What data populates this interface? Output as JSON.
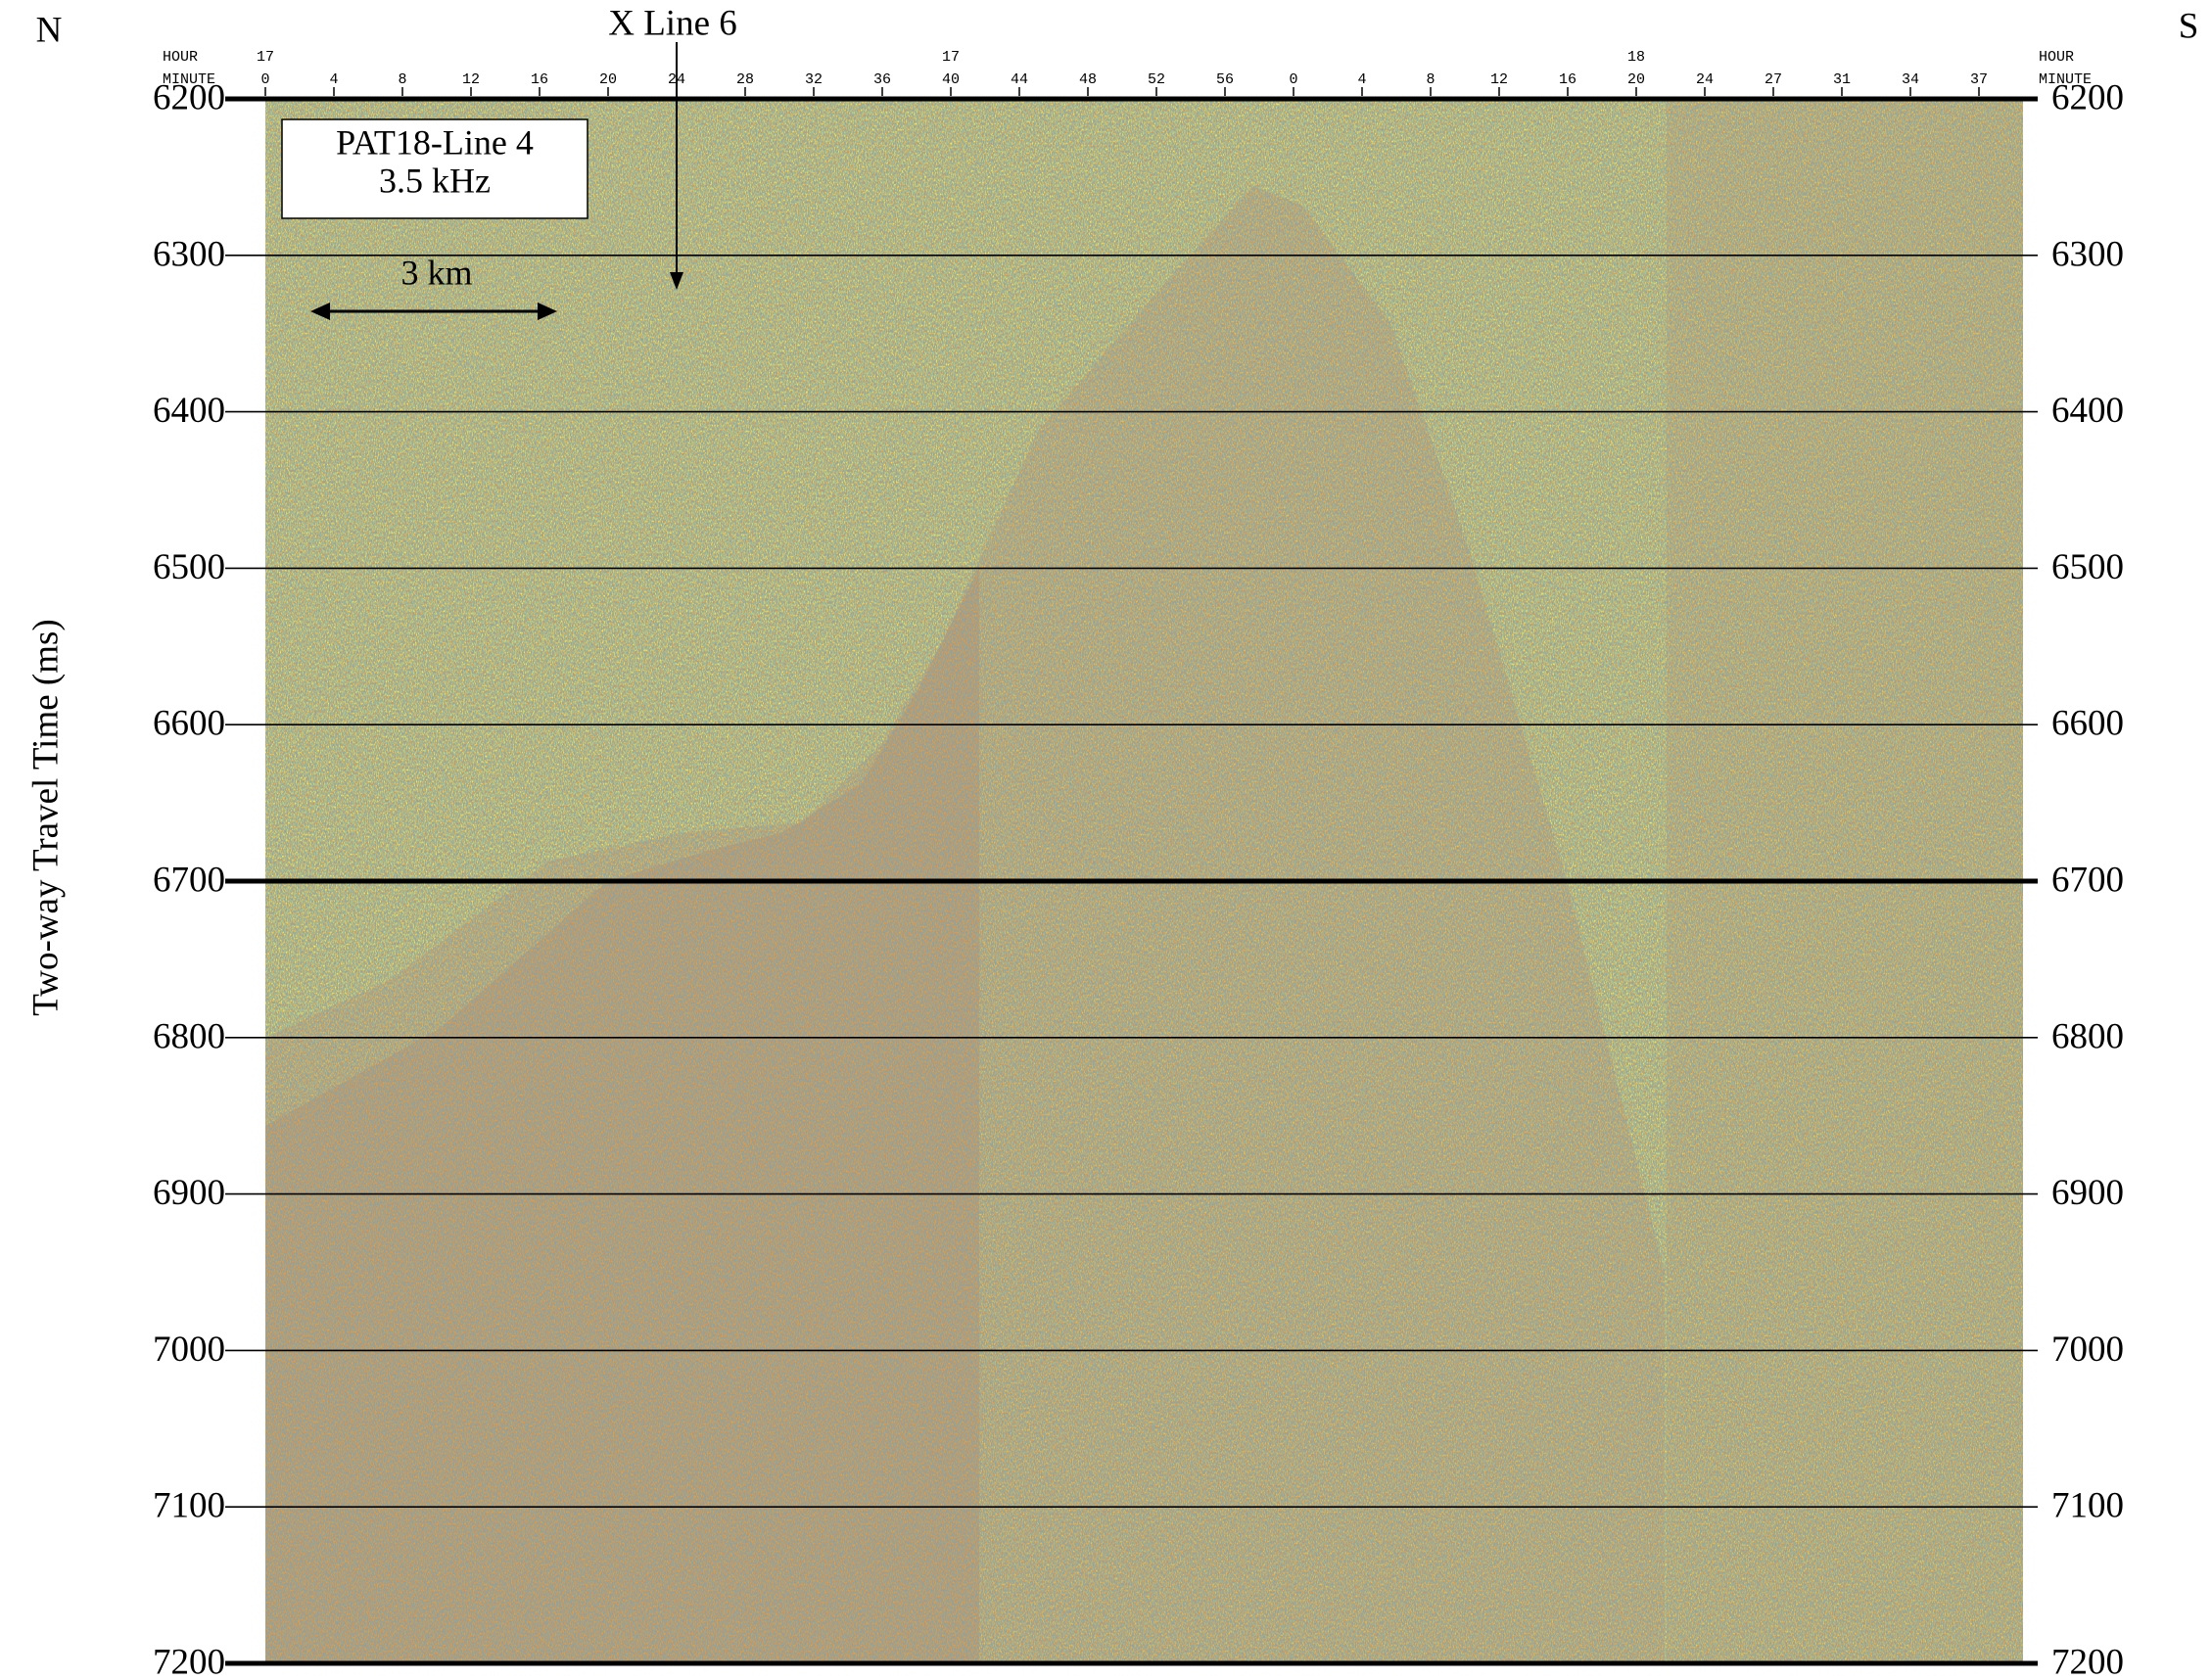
{
  "chart_data": {
    "type": "seismic",
    "title": "X Line 6",
    "ylabel": "Two-way Travel Time (ms)",
    "ylim": [
      6200,
      7200
    ],
    "yticks": [
      6200,
      6300,
      6400,
      6500,
      6600,
      6700,
      6800,
      6900,
      7000,
      7100,
      7200
    ],
    "thick_lines": [
      6200,
      6700,
      7200
    ],
    "left_direction": "N",
    "right_direction": "S",
    "box_lines": [
      "PAT18-Line 4",
      "3.5 kHz"
    ],
    "scale_bar": "3 km",
    "hour_caption": "HOUR",
    "minute_caption": "MINUTE",
    "minutes": [
      "0",
      "4",
      "8",
      "12",
      "16",
      "20",
      "24",
      "28",
      "32",
      "36",
      "40",
      "44",
      "48",
      "52",
      "56",
      "0",
      "4",
      "8",
      "12",
      "16",
      "20",
      "24",
      "27",
      "31",
      "34",
      "37"
    ],
    "hours": [
      "17",
      null,
      null,
      null,
      null,
      null,
      null,
      null,
      null,
      null,
      "17",
      null,
      null,
      null,
      null,
      null,
      null,
      null,
      null,
      null,
      "18",
      null,
      null,
      null,
      null,
      null
    ]
  }
}
